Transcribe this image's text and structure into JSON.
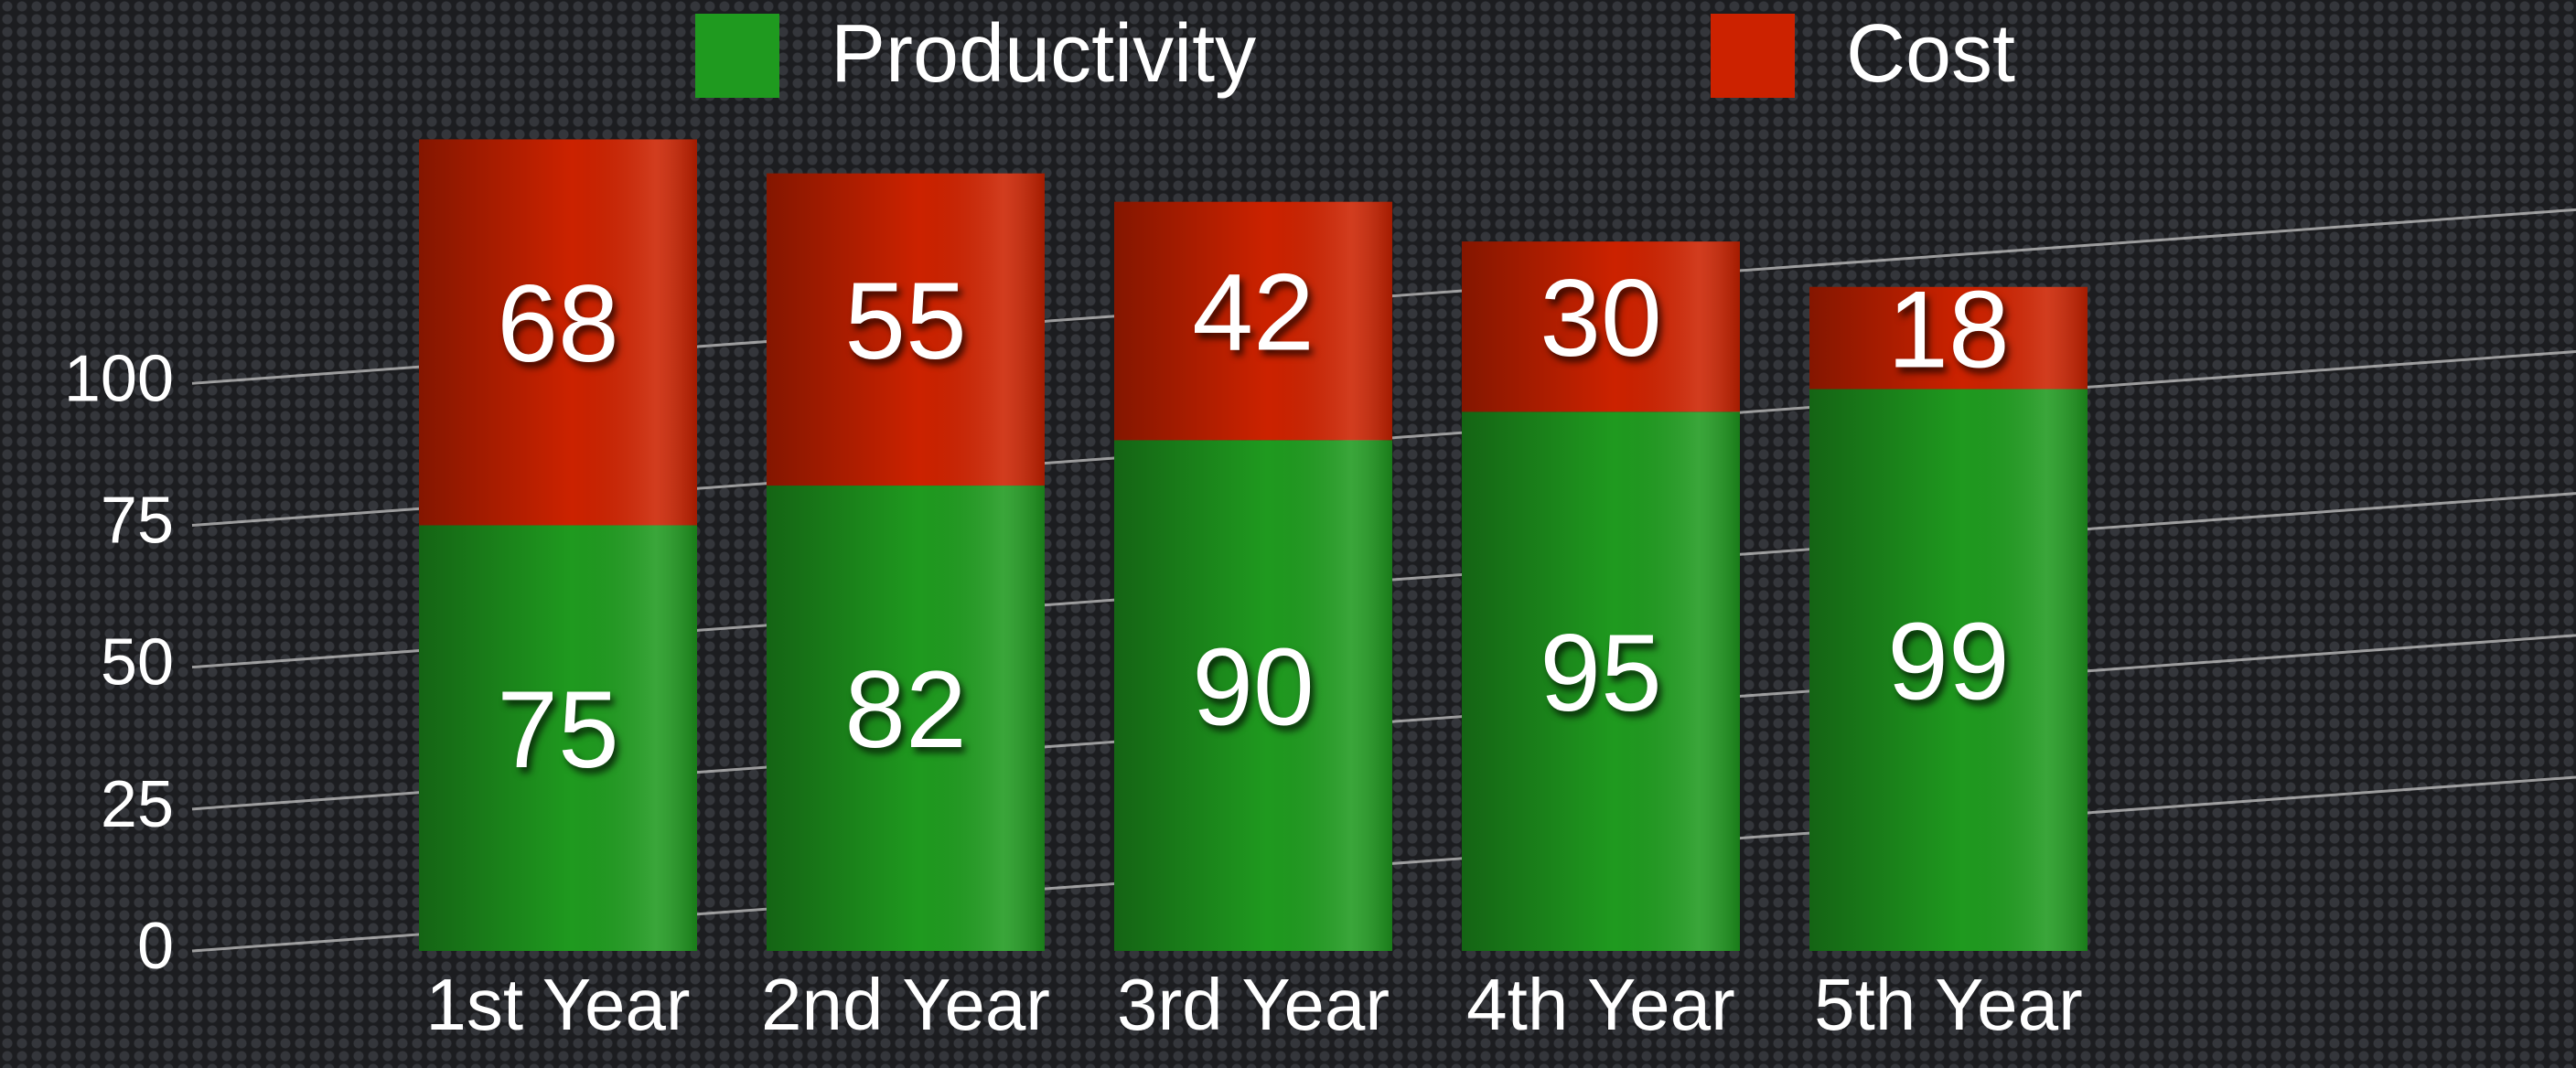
{
  "chart_data": {
    "type": "stacked_bar",
    "categories": [
      "1st Year",
      "2nd Year",
      "3rd Year",
      "4th Year",
      "5th Year"
    ],
    "series": [
      {
        "name": "Productivity",
        "color": "#1f9a1f",
        "values": [
          75,
          82,
          90,
          95,
          99
        ]
      },
      {
        "name": "Cost",
        "color": "#cc2200",
        "values": [
          68,
          55,
          42,
          30,
          18
        ]
      }
    ],
    "ylim": [
      0,
      145
    ],
    "yticks": [
      0,
      25,
      50,
      75,
      100
    ],
    "grid": true,
    "legend": "top"
  }
}
